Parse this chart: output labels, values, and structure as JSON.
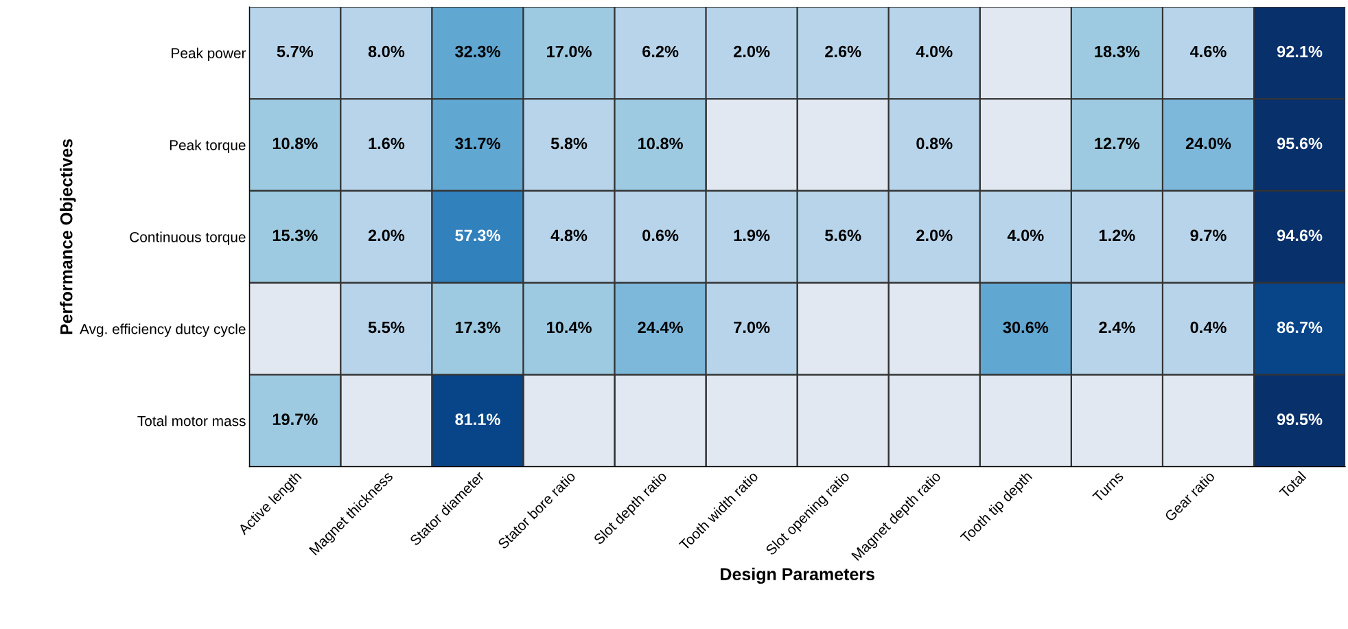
{
  "chart_data": {
    "type": "heatmap",
    "xlabel": "Design Parameters",
    "ylabel": "Performance Objectives",
    "categories": [
      "Active length",
      "Magnet thickness",
      "Stator diameter",
      "Stator bore ratio",
      "Slot depth ratio",
      "Tooth width ratio",
      "Slot opening ratio",
      "Magnet depth ratio",
      "Tooth tip depth",
      "Turns",
      "Gear ratio",
      "Total"
    ],
    "y_categories": [
      "Peak power",
      "Peak torque",
      "Continuous torque",
      "Avg. efficiency dutcy cycle",
      "Total motor mass"
    ],
    "cells": [
      [
        5.7,
        8.0,
        32.3,
        17.0,
        6.2,
        2.0,
        2.6,
        4.0,
        null,
        18.3,
        4.6,
        92.1
      ],
      [
        10.8,
        1.6,
        31.7,
        5.8,
        10.8,
        null,
        null,
        0.8,
        null,
        12.7,
        24.0,
        95.6
      ],
      [
        15.3,
        2.0,
        57.3,
        4.8,
        0.6,
        1.9,
        5.6,
        2.0,
        4.0,
        1.2,
        9.7,
        94.6
      ],
      [
        null,
        5.5,
        17.3,
        10.4,
        24.4,
        7.0,
        null,
        null,
        30.6,
        2.4,
        0.4,
        86.7
      ],
      [
        19.7,
        null,
        81.1,
        null,
        null,
        null,
        null,
        null,
        null,
        null,
        null,
        99.5
      ]
    ],
    "cell_labels": [
      [
        "5.7%",
        "8.0%",
        "32.3%",
        "17.0%",
        "6.2%",
        "2.0%",
        "2.6%",
        "4.0%",
        null,
        "18.3%",
        "4.6%",
        "92.1%"
      ],
      [
        "10.8%",
        "1.6%",
        "31.7%",
        "5.8%",
        "10.8%",
        null,
        null,
        "0.8%",
        null,
        "12.7%",
        "24.0%",
        "95.6%"
      ],
      [
        "15.3%",
        "2.0%",
        "57.3%",
        "4.8%",
        "0.6%",
        "1.9%",
        "5.6%",
        "2.0%",
        "4.0%",
        "1.2%",
        "9.7%",
        "94.6%"
      ],
      [
        null,
        "5.5%",
        "17.3%",
        "10.4%",
        "24.4%",
        "7.0%",
        null,
        null,
        "30.6%",
        "2.4%",
        "0.4%",
        "86.7%"
      ],
      [
        "19.7%",
        null,
        "81.1%",
        null,
        null,
        null,
        null,
        null,
        null,
        null,
        null,
        "99.5%"
      ]
    ]
  }
}
